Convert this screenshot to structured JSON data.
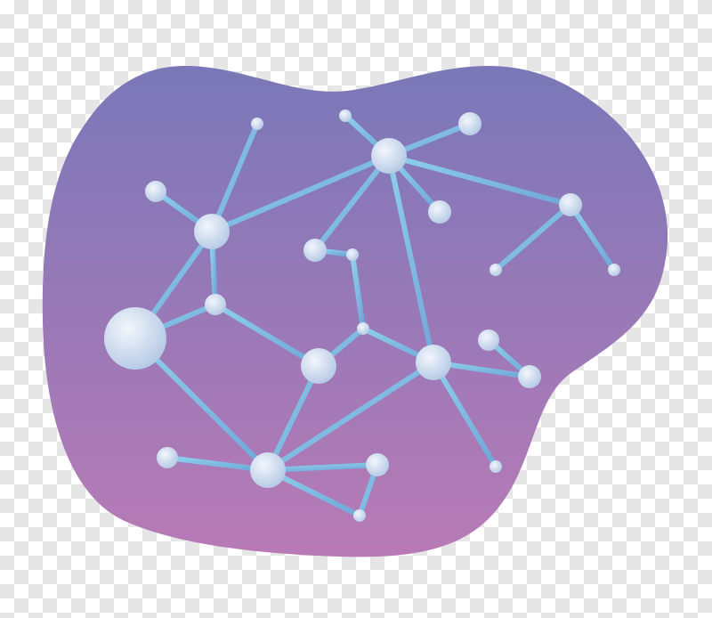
{
  "image": {
    "subject": "network-molecule-illustration",
    "background": "transparent-checkerboard"
  },
  "colors": {
    "blob_top": "#7a78b8",
    "blob_bottom": "#b87ab6",
    "edge_light": "#8fd0ec",
    "edge_dark": "#6fa6d8",
    "node_light": "#f2f6fc",
    "node_dark": "#b4c8e4"
  }
}
